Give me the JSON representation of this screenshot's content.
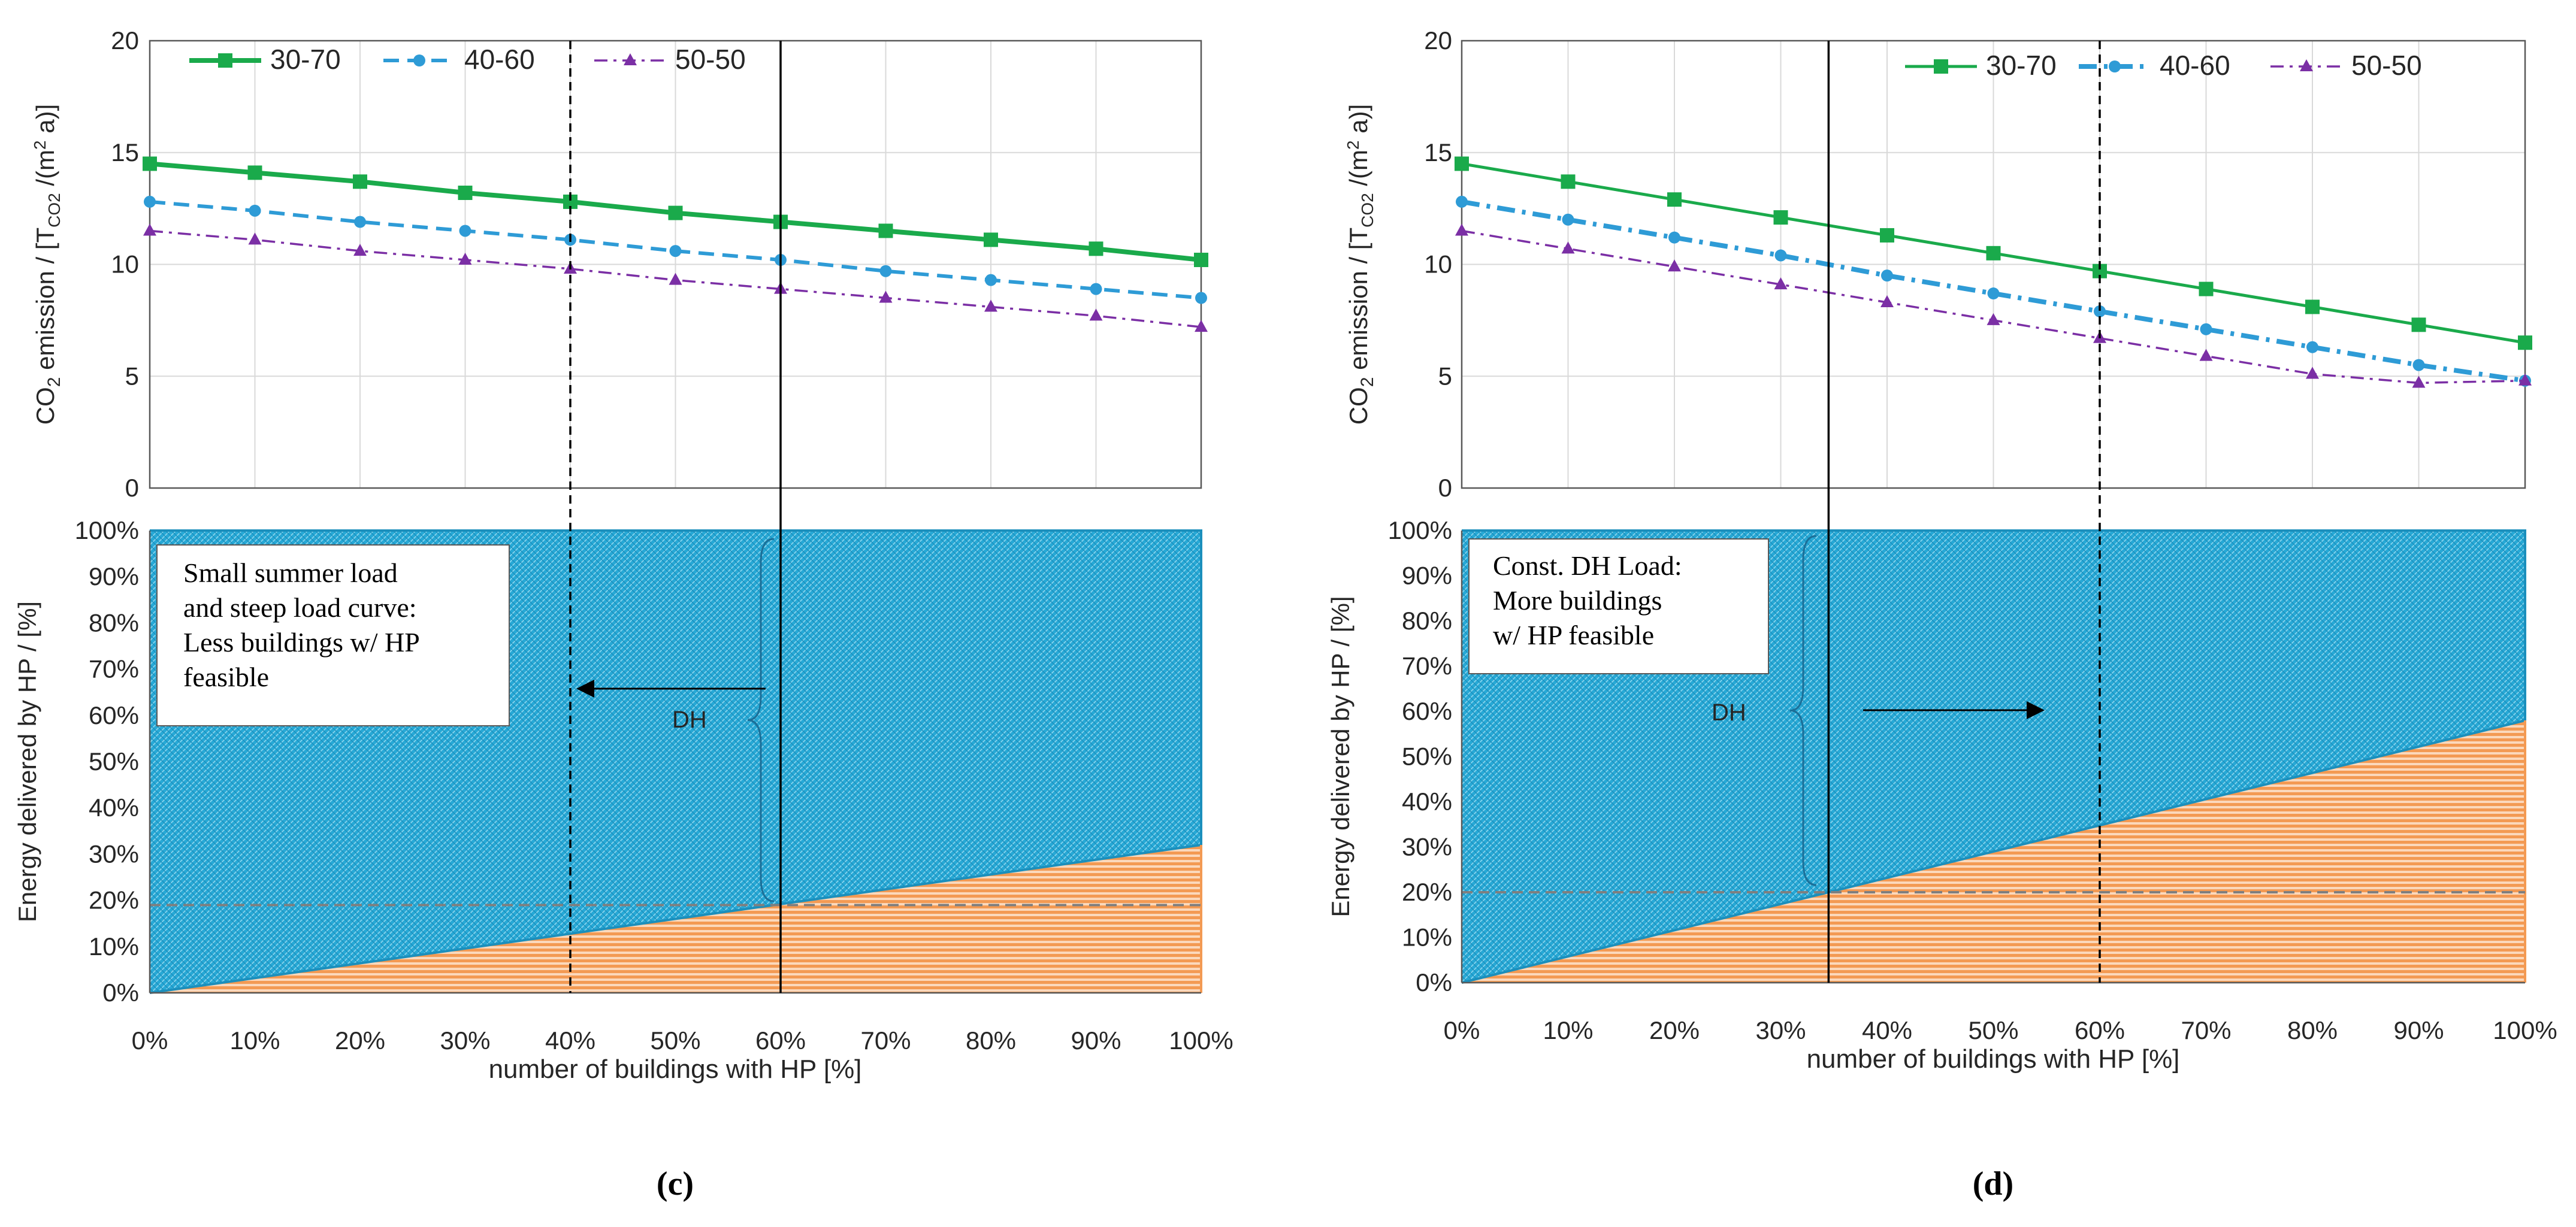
{
  "chart_data": [
    {
      "id": "c",
      "panel_label": "(c)",
      "type": "line",
      "title": "",
      "xlabel": "number of buildings with HP [%]",
      "ylabel": {
        "prefix": "CO",
        "sub": "2",
        "mid": " emission / [T",
        "sub2": "CO2",
        "mid2": " /(m",
        "sup": "2",
        "suffix": " a)]"
      },
      "x": [
        0,
        10,
        20,
        30,
        40,
        50,
        60,
        70,
        80,
        90,
        100
      ],
      "xtick_labels": [
        "0%",
        "10%",
        "20%",
        "30%",
        "40%",
        "50%",
        "60%",
        "70%",
        "80%",
        "90%",
        "100%"
      ],
      "ylim": [
        0,
        20
      ],
      "yticks": [
        "0",
        "5",
        "10",
        "15",
        "20"
      ],
      "legend": [
        "30-70",
        "40-60",
        "50-50"
      ],
      "series": [
        {
          "name": "30-70",
          "color": "#1aaa4b",
          "marker": "square",
          "values": [
            14.5,
            14.1,
            13.7,
            13.2,
            12.8,
            12.3,
            11.9,
            11.5,
            11.1,
            10.7,
            10.2
          ]
        },
        {
          "name": "40-60",
          "color": "#2e9bd6",
          "marker": "circle",
          "values": [
            12.8,
            12.4,
            11.9,
            11.5,
            11.1,
            10.6,
            10.2,
            9.7,
            9.3,
            8.9,
            8.5
          ]
        },
        {
          "name": "50-50",
          "color": "#7b2fa5",
          "marker": "triangle",
          "values": [
            11.5,
            11.1,
            10.6,
            10.2,
            9.8,
            9.3,
            8.9,
            8.5,
            8.1,
            7.7,
            7.2
          ]
        }
      ],
      "vlines": [
        {
          "x": 40,
          "style": "dashed"
        },
        {
          "x": 60,
          "style": "solid"
        }
      ],
      "area": {
        "ylabel": "Energy delivered by HP / [%]",
        "yticks": [
          "0%",
          "10%",
          "20%",
          "30%",
          "40%",
          "50%",
          "60%",
          "70%",
          "80%",
          "90%",
          "100%"
        ],
        "hp_share_at_0": 0,
        "hp_share_at_100": 32,
        "threshold": 19,
        "annotation": [
          "Small summer load",
          "and steep load curve:",
          "Less buildings w/ HP",
          "feasible"
        ],
        "dh_label": "DH",
        "arrow_direction": "left",
        "hp_color": "#f39a53",
        "dh_color": "#27a9d6"
      }
    },
    {
      "id": "d",
      "panel_label": "(d)",
      "type": "line",
      "title": "",
      "xlabel": "number of buildings with HP [%]",
      "ylabel": {
        "prefix": "CO",
        "sub": "2",
        "mid": " emission / [T",
        "sub2": "CO2",
        "mid2": " /(m",
        "sup": "2",
        "suffix": " a)]"
      },
      "x": [
        0,
        10,
        20,
        30,
        40,
        50,
        60,
        70,
        80,
        90,
        100
      ],
      "xtick_labels": [
        "0%",
        "10%",
        "20%",
        "30%",
        "40%",
        "50%",
        "60%",
        "70%",
        "80%",
        "90%",
        "100%"
      ],
      "ylim": [
        0,
        20
      ],
      "yticks": [
        "0",
        "5",
        "10",
        "15",
        "20"
      ],
      "legend": [
        "30-70",
        "40-60",
        "50-50"
      ],
      "series": [
        {
          "name": "30-70",
          "color": "#1aaa4b",
          "marker": "square",
          "values": [
            14.5,
            13.7,
            12.9,
            12.1,
            11.3,
            10.5,
            9.7,
            8.9,
            8.1,
            7.3,
            6.5
          ]
        },
        {
          "name": "40-60",
          "color": "#2e9bd6",
          "marker": "circle",
          "values": [
            12.8,
            12.0,
            11.2,
            10.4,
            9.5,
            8.7,
            7.9,
            7.1,
            6.3,
            5.5,
            4.8
          ]
        },
        {
          "name": "50-50",
          "color": "#7b2fa5",
          "marker": "triangle",
          "values": [
            11.5,
            10.7,
            9.9,
            9.1,
            8.3,
            7.5,
            6.7,
            5.9,
            5.1,
            4.7,
            4.8
          ]
        }
      ],
      "vlines": [
        {
          "x": 34.5,
          "style": "solid"
        },
        {
          "x": 60,
          "style": "dashed"
        }
      ],
      "area": {
        "ylabel": "Energy delivered by HP / [%]",
        "yticks": [
          "0%",
          "10%",
          "20%",
          "30%",
          "40%",
          "50%",
          "60%",
          "70%",
          "80%",
          "90%",
          "100%"
        ],
        "hp_share_at_0": 0,
        "hp_share_at_100": 58,
        "threshold": 20,
        "annotation": [
          "Const. DH Load:",
          "More buildings",
          "w/ HP feasible"
        ],
        "dh_label": "DH",
        "arrow_direction": "right",
        "hp_color": "#f39a53",
        "dh_color": "#27a9d6"
      }
    }
  ]
}
